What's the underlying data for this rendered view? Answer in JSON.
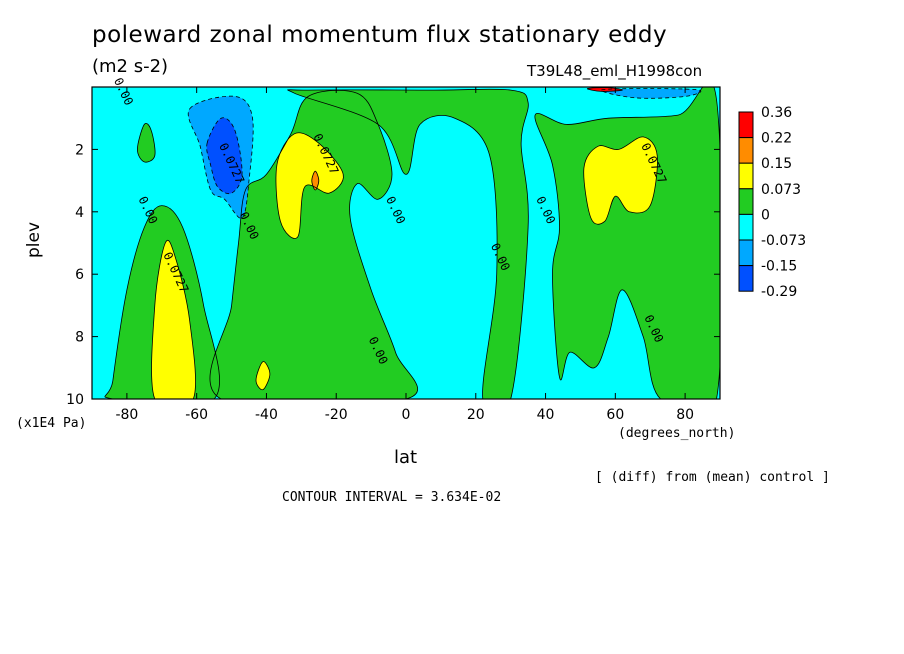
{
  "chart_data": {
    "type": "heatmap",
    "title": "poleward zonal momentum flux stationary eddy",
    "units": "(m2 s-2)",
    "run_label": "T39L48_eml_H1998con",
    "ylabel": "plev",
    "y_unit_label": "(x1E4 Pa)",
    "xlabel": "lat",
    "x_unit_label": "(degrees_north)",
    "note": "[ (diff) from (mean) control ]",
    "contour_interval": "CONTOUR INTERVAL = 3.634E-02",
    "xlim": [
      -90,
      90
    ],
    "ylim": [
      10,
      0
    ],
    "x_ticks": [
      -80,
      -60,
      -40,
      -20,
      0,
      20,
      40,
      60,
      80
    ],
    "x_tick_labels": [
      "-80",
      "-60",
      "-40",
      "-20",
      "0",
      "20",
      "40",
      "60",
      "80"
    ],
    "y_ticks": [
      2,
      4,
      6,
      8,
      10
    ],
    "y_tick_labels": [
      "2",
      "4",
      "6",
      "8",
      "10"
    ],
    "colorbar": {
      "labels": [
        "0.36",
        "0.22",
        "0.15",
        "0.073",
        "0",
        "-0.073",
        "-0.15",
        "-0.29"
      ],
      "colors": [
        "#ff0000",
        "#ff8c00",
        "#ffff00",
        "#22cc22",
        "#00ffff",
        "#00a8ff",
        "#0050ff"
      ]
    },
    "contour_labels": [
      {
        "text": "0.00",
        "lat": -82,
        "plev": 0.2
      },
      {
        "text": "0.00",
        "lat": -75,
        "plev": 4.0
      },
      {
        "text": "0.0727",
        "lat": -67,
        "plev": 6.0
      },
      {
        "text": "0.0727",
        "lat": -51,
        "plev": 2.5
      },
      {
        "text": "0.00",
        "lat": -46,
        "plev": 4.5
      },
      {
        "text": "0.0727",
        "lat": -24,
        "plev": 2.2
      },
      {
        "text": "0.00",
        "lat": -4,
        "plev": 4.0
      },
      {
        "text": "0.00",
        "lat": -9,
        "plev": 8.5
      },
      {
        "text": "0.00",
        "lat": 26,
        "plev": 5.5
      },
      {
        "text": "0.00",
        "lat": 39,
        "plev": 4.0
      },
      {
        "text": "0.0727",
        "lat": 70,
        "plev": 2.5
      },
      {
        "text": "0.00",
        "lat": 70,
        "plev": 7.8
      }
    ],
    "regions": [
      {
        "level": "0",
        "color": "#22cc22",
        "name": "northern-green-band",
        "points": [
          [
            37,
            0.9
          ],
          [
            46,
            1.2
          ],
          [
            58,
            1.0
          ],
          [
            78,
            0.9
          ],
          [
            89,
            0.4
          ],
          [
            89,
            10
          ],
          [
            73,
            10
          ],
          [
            68,
            8
          ],
          [
            62,
            6.5
          ],
          [
            58,
            8
          ],
          [
            54,
            9
          ],
          [
            47,
            8.5
          ],
          [
            44,
            9.3
          ],
          [
            42,
            6
          ],
          [
            44,
            4.5
          ],
          [
            42,
            2.5
          ]
        ]
      },
      {
        "level": "0",
        "color": "#22cc22",
        "name": "central-green-band",
        "points": [
          [
            -33,
            1.5
          ],
          [
            -28,
            0.3
          ],
          [
            -14,
            0.2
          ],
          [
            -8,
            1.2
          ],
          [
            -4,
            2.8
          ],
          [
            -8,
            3.6
          ],
          [
            -14,
            3.1
          ],
          [
            -16,
            4.2
          ],
          [
            -10,
            6.5
          ],
          [
            -3,
            8.5
          ],
          [
            0,
            10
          ],
          [
            -53,
            10
          ],
          [
            -50,
            7
          ],
          [
            -48,
            5
          ],
          [
            -46,
            3.3
          ],
          [
            -40,
            2.8
          ]
        ]
      },
      {
        "level": "0",
        "color": "#22cc22",
        "name": "southern-green-band",
        "points": [
          [
            -84,
            9.4
          ],
          [
            -80,
            6.5
          ],
          [
            -75,
            4.5
          ],
          [
            -70,
            3.8
          ],
          [
            -64,
            4.5
          ],
          [
            -58,
            7
          ],
          [
            -55,
            10
          ],
          [
            -84,
            10
          ]
        ]
      },
      {
        "level": "0",
        "color": "#22cc22",
        "name": "top-green-band",
        "points": [
          [
            -32,
            0.2
          ],
          [
            -28,
            0.1
          ],
          [
            8,
            0.1
          ],
          [
            30,
            0.1
          ],
          [
            35,
            0.5
          ],
          [
            33,
            1.8
          ],
          [
            35,
            4.5
          ],
          [
            30,
            10
          ],
          [
            22,
            10
          ],
          [
            26,
            6
          ],
          [
            24,
            2.2
          ],
          [
            14,
            1.0
          ],
          [
            4,
            1.2
          ],
          [
            0,
            2.8
          ],
          [
            -8,
            1.2
          ]
        ]
      },
      {
        "level": "0",
        "color": "#22cc22",
        "name": "small-green-patch",
        "points": [
          [
            -75,
            1.2
          ],
          [
            -73,
            1.4
          ],
          [
            -72,
            2.2
          ],
          [
            -75,
            2.4
          ],
          [
            -77,
            2.0
          ]
        ]
      },
      {
        "level": "0.073",
        "color": "#ffff00",
        "name": "south-yellow",
        "points": [
          [
            -72,
            7
          ],
          [
            -69,
            5
          ],
          [
            -66,
            5.5
          ],
          [
            -62,
            7.5
          ],
          [
            -61,
            10
          ],
          [
            -72,
            10
          ]
        ]
      },
      {
        "level": "0.073",
        "color": "#ffff00",
        "name": "mid-yellow",
        "points": [
          [
            -37,
            2.5
          ],
          [
            -32,
            1.5
          ],
          [
            -25,
            1.8
          ],
          [
            -18,
            2.8
          ],
          [
            -22,
            3.4
          ],
          [
            -29,
            3.2
          ],
          [
            -31,
            4.8
          ],
          [
            -36,
            4.3
          ]
        ]
      },
      {
        "level": "0.073",
        "color": "#ffff00",
        "name": "north-yellow",
        "points": [
          [
            51,
            2.6
          ],
          [
            55,
            1.9
          ],
          [
            61,
            2.0
          ],
          [
            68,
            1.6
          ],
          [
            72,
            2.2
          ],
          [
            70,
            3.8
          ],
          [
            64,
            4.0
          ],
          [
            60,
            3.5
          ],
          [
            57,
            4.3
          ],
          [
            53,
            4.2
          ]
        ]
      },
      {
        "level": "0.073",
        "color": "#ffff00",
        "name": "small-yellow",
        "points": [
          [
            -43,
            9.4
          ],
          [
            -41,
            8.8
          ],
          [
            -39,
            9.2
          ],
          [
            -41,
            9.7
          ]
        ]
      },
      {
        "level": "0.15",
        "color": "#ff8c00",
        "name": "small-orange",
        "points": [
          [
            -27,
            3.0
          ],
          [
            -26,
            2.7
          ],
          [
            -25,
            3.0
          ],
          [
            -26,
            3.3
          ]
        ]
      },
      {
        "level": "-0.073",
        "color": "#00a8ff",
        "name": "south-blue",
        "points": [
          [
            -62,
            0.7
          ],
          [
            -49,
            0.3
          ],
          [
            -44,
            1.0
          ],
          [
            -45,
            3.0
          ],
          [
            -47,
            4.2
          ],
          [
            -52,
            3.6
          ],
          [
            -56,
            3.3
          ],
          [
            -59,
            1.9
          ]
        ]
      },
      {
        "level": "-0.15",
        "color": "#0050ff",
        "name": "south-deep-blue",
        "points": [
          [
            -57,
            1.8
          ],
          [
            -53,
            1.0
          ],
          [
            -49,
            1.4
          ],
          [
            -47,
            2.8
          ],
          [
            -50,
            3.4
          ],
          [
            -54,
            3.2
          ],
          [
            -56,
            2.5
          ]
        ]
      },
      {
        "level": "-0.073",
        "color": "#00a8ff",
        "name": "top-blue",
        "points": [
          [
            56,
            0.1
          ],
          [
            70,
            0.05
          ],
          [
            84,
            0.1
          ],
          [
            80,
            0.3
          ],
          [
            66,
            0.35
          ]
        ]
      },
      {
        "level": "0.36",
        "color": "#ff0000",
        "name": "top-red-speck",
        "points": [
          [
            52,
            0.05
          ],
          [
            58,
            0.02
          ],
          [
            62,
            0.1
          ],
          [
            56,
            0.14
          ]
        ]
      }
    ]
  }
}
